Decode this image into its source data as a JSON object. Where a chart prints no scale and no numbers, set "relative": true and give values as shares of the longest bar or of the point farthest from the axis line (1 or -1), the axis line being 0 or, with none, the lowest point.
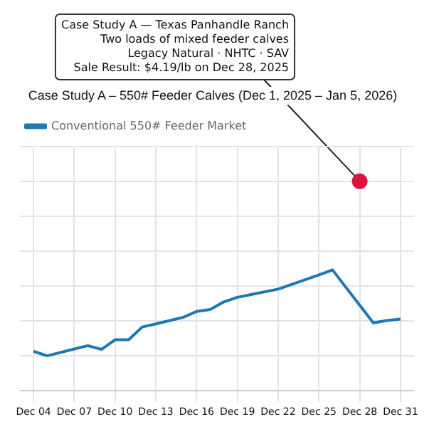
{
  "chart_data": {
    "type": "line",
    "title": "Case Study A – 550# Feeder Calves (Dec 1, 2025 – Jan 5, 2026)",
    "relative": true,
    "x": [
      "2025-12-04",
      "2025-12-05",
      "2025-12-07",
      "2025-12-08",
      "2025-12-09",
      "2025-12-10",
      "2025-12-11",
      "2025-12-12",
      "2025-12-13",
      "2025-12-15",
      "2025-12-16",
      "2025-12-17",
      "2025-12-18",
      "2025-12-19",
      "2025-12-20",
      "2025-12-22",
      "2025-12-25",
      "2025-12-26",
      "2025-12-29",
      "2025-12-30",
      "2025-12-31"
    ],
    "series": [
      {
        "name": "Conventional 550# Feeder Market",
        "color": "#1f77b4",
        "values": [
          0.026,
          0,
          0.039,
          0.058,
          0.037,
          0.092,
          0.092,
          0.165,
          0.183,
          0.22,
          0.254,
          0.265,
          0.309,
          0.335,
          0.351,
          0.382,
          0.463,
          0.492,
          0.189,
          0.202,
          0.21
        ]
      },
      {
        "type": "scatter",
        "color": "#dc143c",
        "marker": "circle",
        "x": [
          "2025-12-28"
        ],
        "values": [
          1
        ]
      }
    ],
    "xlim": [
      "2025-12-03",
      "2026-01-01"
    ],
    "xticks": [
      {
        "value": "2025-12-04",
        "label": "Dec 04"
      },
      {
        "value": "2025-12-07",
        "label": "Dec 07"
      },
      {
        "value": "2025-12-10",
        "label": "Dec 10"
      },
      {
        "value": "2025-12-13",
        "label": "Dec 13"
      },
      {
        "value": "2025-12-16",
        "label": "Dec 16"
      },
      {
        "value": "2025-12-19",
        "label": "Dec 19"
      },
      {
        "value": "2025-12-22",
        "label": "Dec 22"
      },
      {
        "value": "2025-12-25",
        "label": "Dec 25"
      },
      {
        "value": "2025-12-28",
        "label": "Dec 28"
      },
      {
        "value": "2025-12-31",
        "label": "Dec 31"
      }
    ],
    "grid": true,
    "legend": "top left",
    "line_style": "solid",
    "marker": "none",
    "annotations": [
      "Case Study A — Texas Panhandle Ranch\nTwo loads of mixed feeder calves\nLegacy Natural · NHTC · SAV\nSale Result: $4.19/lb on Dec 28, 2025"
    ]
  }
}
